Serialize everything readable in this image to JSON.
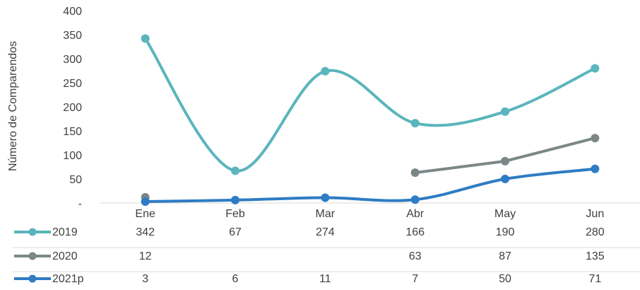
{
  "chart_data": {
    "type": "line",
    "title": "",
    "xlabel": "",
    "ylabel": "Número de Comparendos",
    "categories": [
      "Ene",
      "Feb",
      "Mar",
      "Abr",
      "May",
      "Jun"
    ],
    "ylim": [
      0,
      400
    ],
    "y_ticks": [
      "-",
      "50",
      "100",
      "150",
      "200",
      "250",
      "300",
      "350",
      "400"
    ],
    "y_tick_values": [
      0,
      50,
      100,
      150,
      200,
      250,
      300,
      350,
      400
    ],
    "grid": false,
    "legend_placement": "data-table",
    "series": [
      {
        "name": "2019",
        "color": "#5BB5BD",
        "smooth": true,
        "values": [
          342,
          67,
          274,
          166,
          190,
          280
        ],
        "labels": [
          "342",
          "67",
          "274",
          "166",
          "190",
          "280"
        ]
      },
      {
        "name": "2020",
        "color": "#7B8787",
        "smooth": false,
        "values": [
          12,
          null,
          null,
          63,
          87,
          135
        ],
        "labels": [
          "12",
          "",
          "",
          "63",
          "87",
          "135"
        ]
      },
      {
        "name": "2021p",
        "color": "#2E7CC4",
        "smooth": true,
        "values": [
          3,
          6,
          11,
          7,
          50,
          71
        ],
        "labels": [
          "3",
          "6",
          "11",
          "7",
          "50",
          "71"
        ]
      }
    ]
  }
}
